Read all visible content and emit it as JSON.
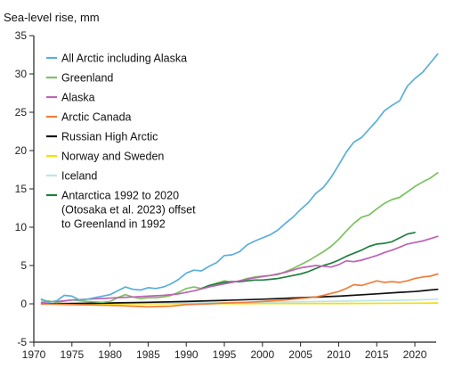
{
  "chart_data": {
    "type": "line",
    "ylabel": "Sea-level rise, mm",
    "xlabel": "",
    "xlim": [
      1970,
      2023
    ],
    "ylim": [
      -5,
      35
    ],
    "x_ticks": [
      1970,
      1975,
      1980,
      1985,
      1990,
      1995,
      2000,
      2005,
      2010,
      2015,
      2020
    ],
    "y_ticks": [
      -5,
      0,
      5,
      10,
      15,
      20,
      25,
      30,
      35
    ],
    "grid": false,
    "legend": "top-left",
    "series": [
      {
        "name": "All Arctic including Alaska",
        "color": "#5aaedc",
        "x": [
          1971,
          1972,
          1973,
          1974,
          1975,
          1976,
          1977,
          1978,
          1979,
          1980,
          1981,
          1982,
          1983,
          1984,
          1985,
          1986,
          1987,
          1988,
          1989,
          1990,
          1991,
          1992,
          1993,
          1994,
          1995,
          1996,
          1997,
          1998,
          1999,
          2000,
          2001,
          2002,
          2003,
          2004,
          2005,
          2006,
          2007,
          2008,
          2009,
          2010,
          2011,
          2012,
          2013,
          2014,
          2015,
          2016,
          2017,
          2018,
          2019,
          2020,
          2021,
          2022,
          2023
        ],
        "values": [
          0.6,
          0.2,
          0.4,
          1.1,
          1.0,
          0.5,
          0.6,
          0.8,
          1.0,
          1.2,
          1.7,
          2.2,
          1.9,
          1.8,
          2.1,
          2.0,
          2.2,
          2.6,
          3.2,
          4.0,
          4.4,
          4.3,
          4.9,
          5.4,
          6.3,
          6.4,
          6.8,
          7.7,
          8.2,
          8.6,
          9.0,
          9.6,
          10.5,
          11.3,
          12.3,
          13.2,
          14.4,
          15.2,
          16.5,
          18.1,
          19.8,
          21.1,
          21.7,
          22.8,
          23.9,
          25.2,
          25.9,
          26.5,
          28.4,
          29.4,
          30.2,
          31.4,
          32.6
        ]
      },
      {
        "name": "Greenland",
        "color": "#7cc160",
        "x": [
          1971,
          1973,
          1975,
          1977,
          1979,
          1980,
          1981,
          1982,
          1983,
          1984,
          1985,
          1986,
          1987,
          1988,
          1989,
          1990,
          1991,
          1992,
          1993,
          1994,
          1995,
          1996,
          1997,
          1998,
          1999,
          2000,
          2001,
          2002,
          2003,
          2004,
          2005,
          2006,
          2007,
          2008,
          2009,
          2010,
          2011,
          2012,
          2013,
          2014,
          2015,
          2016,
          2017,
          2018,
          2019,
          2020,
          2021,
          2022,
          2023
        ],
        "values": [
          0.5,
          0.2,
          0.5,
          0.3,
          0.2,
          0.3,
          0.8,
          1.2,
          0.9,
          0.7,
          0.8,
          0.8,
          0.9,
          1.1,
          1.5,
          2.0,
          2.2,
          2.0,
          2.4,
          2.7,
          3.0,
          2.8,
          3.0,
          3.3,
          3.5,
          3.6,
          3.7,
          3.8,
          4.2,
          4.6,
          5.1,
          5.6,
          6.2,
          6.8,
          7.5,
          8.4,
          9.5,
          10.5,
          11.3,
          11.6,
          12.4,
          13.1,
          13.6,
          13.9,
          14.6,
          15.3,
          15.9,
          16.4,
          17.1
        ]
      },
      {
        "name": "Alaska",
        "color": "#bf62b4",
        "x": [
          1971,
          1973,
          1975,
          1977,
          1979,
          1981,
          1983,
          1985,
          1987,
          1989,
          1991,
          1993,
          1995,
          1997,
          1999,
          2001,
          2003,
          2005,
          2007,
          2009,
          2010,
          2011,
          2012,
          2013,
          2014,
          2015,
          2016,
          2017,
          2018,
          2019,
          2020,
          2021,
          2022,
          2023
        ],
        "values": [
          0.2,
          0.3,
          0.5,
          0.6,
          0.7,
          0.8,
          0.9,
          1.0,
          1.1,
          1.3,
          1.7,
          2.2,
          2.6,
          3.0,
          3.4,
          3.7,
          4.1,
          4.7,
          5.0,
          4.8,
          5.1,
          5.6,
          5.5,
          5.7,
          6.0,
          6.3,
          6.7,
          7.0,
          7.4,
          7.8,
          8.0,
          8.2,
          8.5,
          8.8
        ]
      },
      {
        "name": "Arctic Canada",
        "color": "#f07d3c",
        "x": [
          1971,
          1975,
          1980,
          1983,
          1985,
          1988,
          1990,
          1993,
          1995,
          1998,
          2000,
          2003,
          2005,
          2007,
          2008,
          2010,
          2011,
          2012,
          2013,
          2014,
          2015,
          2016,
          2017,
          2018,
          2019,
          2020,
          2021,
          2022,
          2023
        ],
        "values": [
          0.0,
          -0.1,
          -0.2,
          -0.3,
          -0.4,
          -0.3,
          -0.1,
          0.0,
          0.1,
          0.2,
          0.3,
          0.5,
          0.7,
          0.9,
          1.1,
          1.6,
          2.0,
          2.5,
          2.4,
          2.7,
          3.0,
          2.8,
          2.9,
          2.8,
          3.0,
          3.3,
          3.5,
          3.6,
          3.9
        ]
      },
      {
        "name": "Russian High Arctic",
        "color": "#111111",
        "x": [
          1971,
          1975,
          1980,
          1985,
          1990,
          1995,
          2000,
          2005,
          2010,
          2015,
          2018,
          2020,
          2021,
          2022,
          2023
        ],
        "values": [
          0.0,
          0.05,
          0.1,
          0.2,
          0.3,
          0.45,
          0.6,
          0.8,
          1.0,
          1.3,
          1.5,
          1.6,
          1.7,
          1.8,
          1.9
        ]
      },
      {
        "name": "Norway and Sweden",
        "color": "#f5e100",
        "x": [
          1971,
          1980,
          1990,
          2000,
          2010,
          2020,
          2023
        ],
        "values": [
          0.0,
          0.0,
          0.02,
          0.03,
          0.05,
          0.08,
          0.1
        ]
      },
      {
        "name": "Iceland",
        "color": "#b9e6ec",
        "x": [
          1971,
          1980,
          1990,
          2000,
          2010,
          2020,
          2023
        ],
        "values": [
          0.0,
          0.05,
          0.1,
          0.2,
          0.35,
          0.5,
          0.6
        ]
      },
      {
        "name": "Antarctica 1992 to 2020 (Otosaka et al. 2023) offset to Greenland in 1992",
        "color": "#1f7f3f",
        "x": [
          1992,
          1993,
          1994,
          1995,
          1996,
          1997,
          1998,
          1999,
          2000,
          2001,
          2002,
          2003,
          2004,
          2005,
          2006,
          2007,
          2008,
          2009,
          2010,
          2011,
          2012,
          2013,
          2014,
          2015,
          2016,
          2017,
          2018,
          2019,
          2020
        ],
        "values": [
          2.0,
          2.4,
          2.6,
          2.8,
          2.9,
          2.9,
          3.0,
          3.1,
          3.1,
          3.2,
          3.3,
          3.5,
          3.7,
          3.9,
          4.2,
          4.6,
          5.0,
          5.3,
          5.7,
          6.2,
          6.6,
          7.0,
          7.5,
          7.8,
          7.9,
          8.1,
          8.6,
          9.1,
          9.3
        ]
      }
    ],
    "legend_entries": [
      {
        "lines": [
          "All Arctic including Alaska"
        ],
        "color": "#5aaedc"
      },
      {
        "lines": [
          "Greenland"
        ],
        "color": "#7cc160"
      },
      {
        "lines": [
          "Alaska"
        ],
        "color": "#bf62b4"
      },
      {
        "lines": [
          "Arctic Canada"
        ],
        "color": "#f07d3c"
      },
      {
        "lines": [
          "Russian High Arctic"
        ],
        "color": "#111111"
      },
      {
        "lines": [
          "Norway and Sweden"
        ],
        "color": "#f5e100"
      },
      {
        "lines": [
          "Iceland"
        ],
        "color": "#b9e6ec"
      },
      {
        "lines": [
          "Antarctica 1992 to 2020",
          "(Otosaka et al. 2023) offset",
          "to Greenland in 1992"
        ],
        "color": "#1f7f3f"
      }
    ]
  }
}
